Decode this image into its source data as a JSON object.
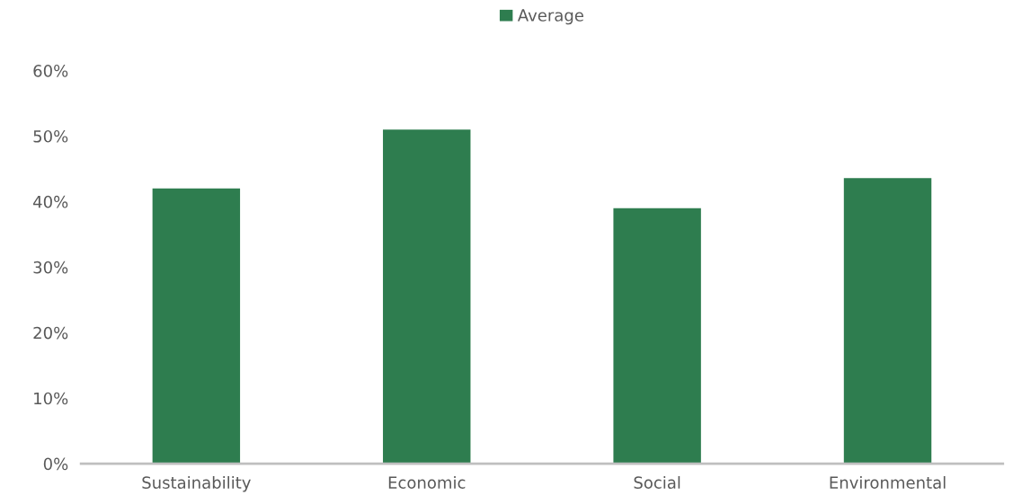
{
  "chart_data": {
    "type": "bar",
    "categories": [
      "Sustainability",
      "Economic",
      "Social",
      "Environmental"
    ],
    "series": [
      {
        "name": "Average",
        "color": "#2e7d4f",
        "values": [
          0.42,
          0.51,
          0.39,
          0.436
        ]
      }
    ],
    "ylim": [
      0,
      0.6
    ],
    "yticks": [
      {
        "value": 0,
        "label": "0%"
      },
      {
        "value": 0.1,
        "label": "10%"
      },
      {
        "value": 0.2,
        "label": "20%"
      },
      {
        "value": 0.3,
        "label": "30%"
      },
      {
        "value": 0.4,
        "label": "40%"
      },
      {
        "value": 0.5,
        "label": "50%"
      },
      {
        "value": 0.6,
        "label": "60%"
      }
    ],
    "grid": false,
    "legend": "top"
  }
}
